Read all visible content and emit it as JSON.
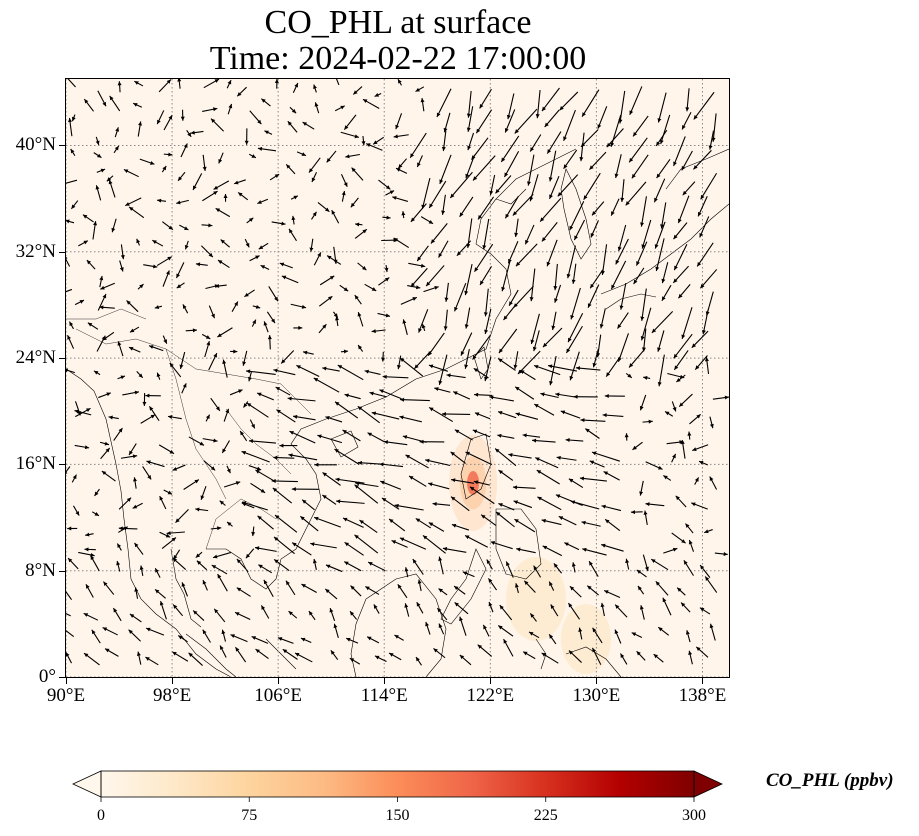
{
  "title": {
    "line1": "CO_PHL at surface",
    "line2": "Time: 2024-02-22 17:00:00"
  },
  "map": {
    "lon_range": [
      90,
      140
    ],
    "lat_range": [
      0,
      45
    ],
    "x_ticks": [
      {
        "value": 90,
        "label": "90°E"
      },
      {
        "value": 98,
        "label": "98°E"
      },
      {
        "value": 106,
        "label": "106°E"
      },
      {
        "value": 114,
        "label": "114°E"
      },
      {
        "value": 122,
        "label": "122°E"
      },
      {
        "value": 130,
        "label": "130°E"
      },
      {
        "value": 138,
        "label": "138°E"
      }
    ],
    "y_ticks": [
      {
        "value": 0,
        "label": "0°"
      },
      {
        "value": 8,
        "label": "8°N"
      },
      {
        "value": 16,
        "label": "16°N"
      },
      {
        "value": 24,
        "label": "24°N"
      },
      {
        "value": 32,
        "label": "32°N"
      },
      {
        "value": 40,
        "label": "40°N"
      }
    ],
    "gridlines": true,
    "background_color": "#fff5eb",
    "hotspot": {
      "lon": 120.7,
      "lat": 14.6,
      "value_ppbv": 180
    },
    "features": [
      "coastlines",
      "country-borders",
      "wind-vectors"
    ]
  },
  "colorbar": {
    "label": "CO_PHL (ppbv)",
    "min": 0,
    "max": 300,
    "ticks": [
      {
        "value": 0,
        "label": "0"
      },
      {
        "value": 75,
        "label": "75"
      },
      {
        "value": 150,
        "label": "150"
      },
      {
        "value": 225,
        "label": "225"
      },
      {
        "value": 300,
        "label": "300"
      }
    ],
    "extend": "both",
    "colormap": "OrRd",
    "stops": [
      "#fff7ec",
      "#fee8c8",
      "#fdd49e",
      "#fdbb84",
      "#fc8d59",
      "#ef6548",
      "#d7301f",
      "#b30000",
      "#7f0000"
    ]
  }
}
